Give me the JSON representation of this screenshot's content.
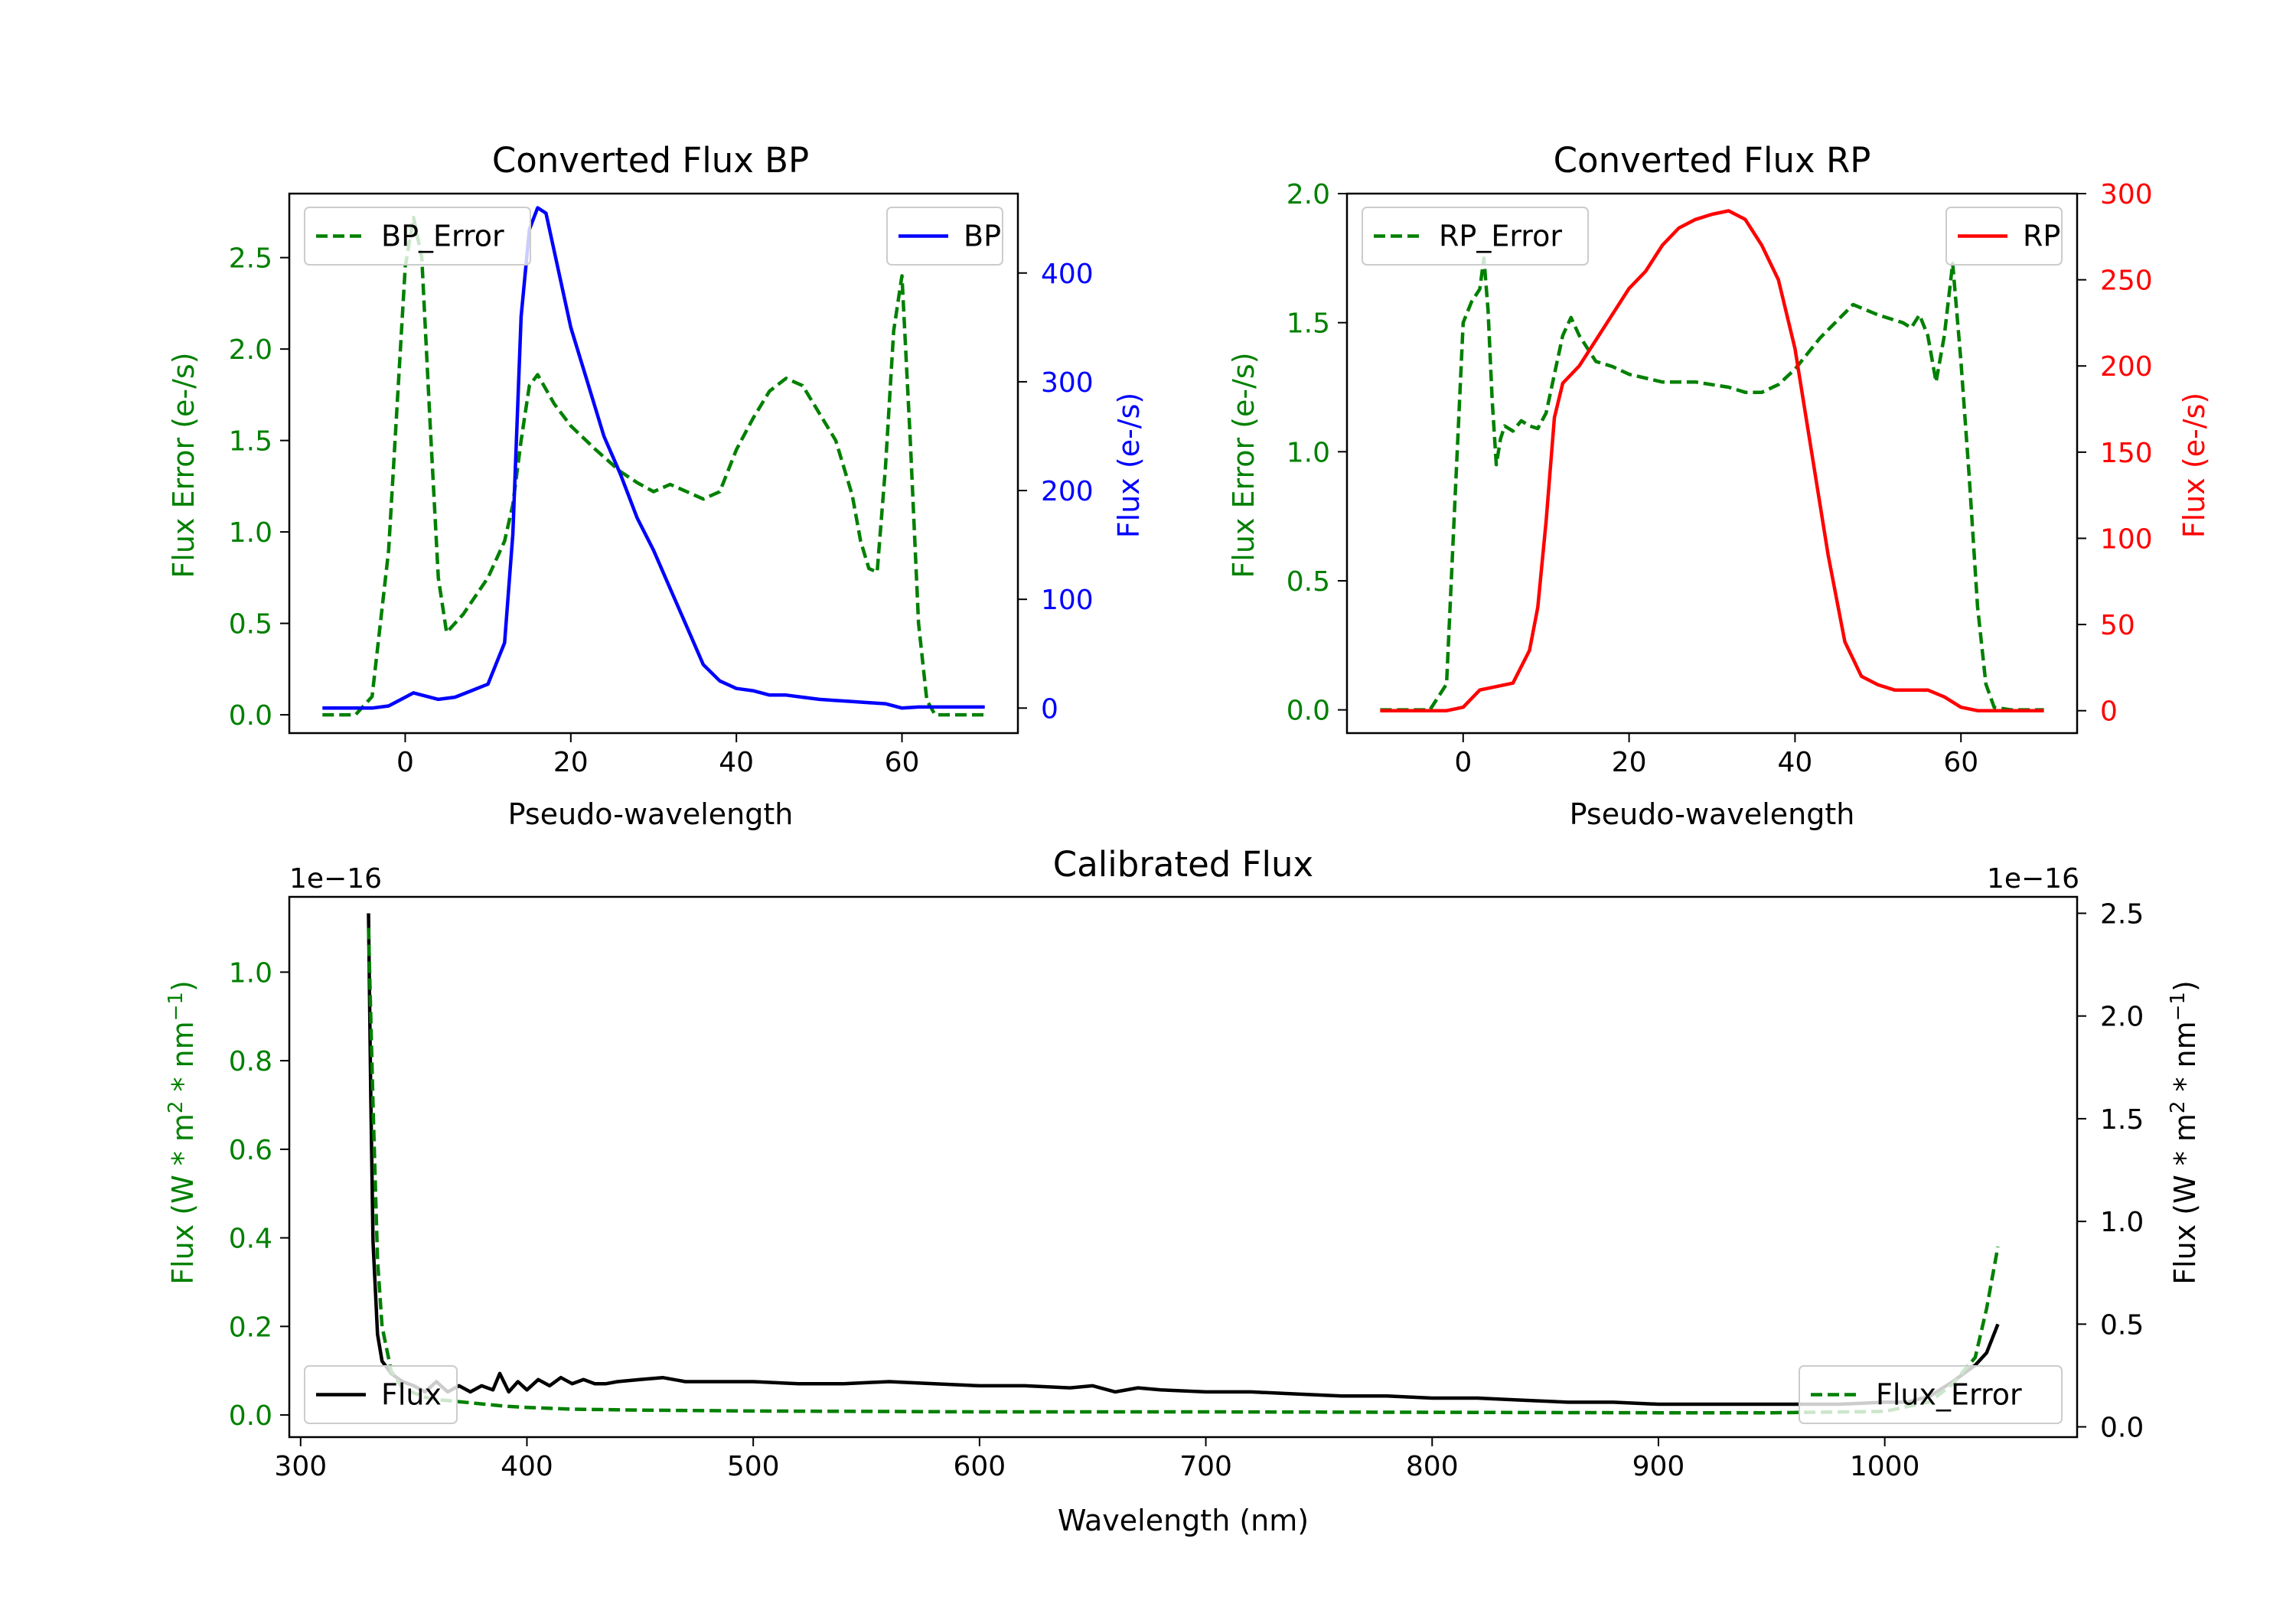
{
  "colors": {
    "green": "#008000",
    "blue": "#0000ff",
    "red": "#ff0000",
    "black": "#000000"
  },
  "chart_data": [
    {
      "id": "bp",
      "type": "line",
      "title": "Converted Flux BP",
      "xlabel": "Pseudo-wavelength",
      "ylabel_left": "Flux Error (e-/s)",
      "ylabel_right": "Flux (e-/s)",
      "xlim": [
        -14,
        74
      ],
      "xticks": [
        0,
        20,
        40,
        60
      ],
      "ylim_left": [
        -0.1,
        2.85
      ],
      "yticks_left": [
        0.0,
        0.5,
        1.0,
        1.5,
        2.0,
        2.5
      ],
      "yticklabels_left": [
        "0.0",
        "0.5",
        "1.0",
        "1.5",
        "2.0",
        "2.5"
      ],
      "ylim_right": [
        -23,
        473
      ],
      "yticks_right": [
        0,
        100,
        200,
        300,
        400
      ],
      "series": [
        {
          "name": "BP_Error",
          "axis": "left",
          "style": "dashed",
          "color": "#008000",
          "legend": "top-left",
          "x": [
            -10,
            -6,
            -4,
            -2,
            0,
            1,
            2,
            3,
            4,
            5,
            7,
            10,
            12,
            13,
            14,
            15,
            16,
            18,
            20,
            23,
            26,
            28,
            30,
            32,
            34,
            36,
            38,
            40,
            42,
            44,
            46,
            48,
            50,
            52,
            54,
            55,
            56,
            57,
            58,
            59,
            60,
            61,
            62,
            63,
            64,
            66,
            70
          ],
          "y": [
            0.0,
            0.0,
            0.1,
            0.9,
            2.45,
            2.72,
            2.5,
            1.6,
            0.75,
            0.45,
            0.55,
            0.75,
            0.95,
            1.15,
            1.5,
            1.8,
            1.86,
            1.7,
            1.58,
            1.45,
            1.33,
            1.27,
            1.22,
            1.26,
            1.22,
            1.18,
            1.22,
            1.45,
            1.62,
            1.77,
            1.84,
            1.8,
            1.65,
            1.5,
            1.2,
            0.95,
            0.8,
            0.78,
            1.35,
            2.1,
            2.4,
            1.5,
            0.5,
            0.08,
            0.0,
            0.0,
            0.0
          ]
        },
        {
          "name": "BP",
          "axis": "right",
          "style": "solid",
          "color": "#0000ff",
          "legend": "top-right",
          "x": [
            -10,
            -4,
            -2,
            0,
            1,
            2,
            4,
            6,
            8,
            10,
            12,
            13,
            14,
            15,
            16,
            17,
            18,
            20,
            22,
            24,
            26,
            28,
            30,
            32,
            34,
            36,
            38,
            40,
            42,
            44,
            46,
            48,
            50,
            52,
            54,
            56,
            58,
            60,
            62,
            66,
            70
          ],
          "y": [
            0,
            0,
            2,
            10,
            14,
            12,
            8,
            10,
            16,
            22,
            60,
            160,
            360,
            440,
            460,
            455,
            420,
            350,
            300,
            250,
            215,
            175,
            145,
            110,
            75,
            40,
            25,
            18,
            16,
            12,
            12,
            10,
            8,
            7,
            6,
            5,
            4,
            0,
            1,
            1,
            1
          ]
        }
      ]
    },
    {
      "id": "rp",
      "type": "line",
      "title": "Converted Flux RP",
      "xlabel": "Pseudo-wavelength",
      "ylabel_left": "Flux Error (e-/s)",
      "ylabel_right": "Flux (e-/s)",
      "xlim": [
        -14,
        74
      ],
      "xticks": [
        0,
        20,
        40,
        60
      ],
      "ylim_left": [
        -0.09,
        2.0
      ],
      "yticks_left": [
        0.0,
        0.5,
        1.0,
        1.5,
        2.0
      ],
      "yticklabels_left": [
        "0.0",
        "0.5",
        "1.0",
        "1.5",
        "2.0"
      ],
      "ylim_right": [
        -13,
        300
      ],
      "yticks_right": [
        0,
        50,
        100,
        150,
        200,
        250,
        300
      ],
      "series": [
        {
          "name": "RP_Error",
          "axis": "left",
          "style": "dashed",
          "color": "#008000",
          "legend": "top-left",
          "x": [
            -10,
            -4,
            -2,
            -1,
            0,
            1,
            2,
            2.5,
            3,
            3.5,
            4,
            4.5,
            5,
            6,
            7,
            8,
            9,
            10,
            11,
            12,
            13,
            14,
            16,
            18,
            20,
            24,
            28,
            32,
            34,
            36,
            38,
            40,
            43,
            47,
            50,
            53,
            54,
            55,
            56,
            57,
            58,
            59,
            60,
            61,
            62,
            63,
            64,
            66,
            70
          ],
          "y": [
            0.0,
            0.0,
            0.1,
            0.8,
            1.5,
            1.58,
            1.63,
            1.75,
            1.55,
            1.2,
            0.95,
            1.05,
            1.1,
            1.08,
            1.12,
            1.1,
            1.09,
            1.15,
            1.3,
            1.45,
            1.52,
            1.45,
            1.35,
            1.33,
            1.3,
            1.27,
            1.27,
            1.25,
            1.23,
            1.23,
            1.26,
            1.32,
            1.44,
            1.57,
            1.53,
            1.5,
            1.48,
            1.53,
            1.45,
            1.27,
            1.45,
            1.73,
            1.35,
            0.9,
            0.4,
            0.1,
            0.01,
            0.0,
            0.0
          ]
        },
        {
          "name": "RP",
          "axis": "right",
          "style": "solid",
          "color": "#ff0000",
          "legend": "top-right",
          "x": [
            -10,
            -2,
            0,
            2,
            4,
            6,
            8,
            9,
            10,
            11,
            12,
            13,
            14,
            16,
            18,
            20,
            22,
            24,
            26,
            28,
            30,
            32,
            34,
            36,
            38,
            40,
            42,
            44,
            46,
            48,
            50,
            52,
            54,
            56,
            58,
            60,
            62,
            66,
            70
          ],
          "y": [
            0,
            0,
            2,
            12,
            14,
            16,
            35,
            60,
            110,
            170,
            190,
            195,
            200,
            215,
            230,
            245,
            255,
            270,
            280,
            285,
            288,
            290,
            285,
            270,
            250,
            210,
            150,
            90,
            40,
            20,
            15,
            12,
            12,
            12,
            8,
            2,
            0,
            0,
            0
          ]
        }
      ]
    },
    {
      "id": "cal",
      "type": "line",
      "title": "Calibrated Flux",
      "xlabel": "Wavelength (nm)",
      "ylabel_left": "Flux (W * m",
      "ylabel_right": "Flux (W * m",
      "ylabel_units_mid": "2",
      "ylabel_units_a": " * nm",
      "ylabel_units_exp": "−1",
      "ylabel_units_end": ")",
      "offset_left": "1e−16",
      "offset_right": "1e−16",
      "xlim": [
        295,
        1085
      ],
      "xticks": [
        300,
        400,
        500,
        600,
        700,
        800,
        900,
        1000
      ],
      "ylim_left": [
        -0.05,
        1.17
      ],
      "yticks_left": [
        0.0,
        0.2,
        0.4,
        0.6,
        0.8,
        1.0
      ],
      "yticklabels_left": [
        "0.0",
        "0.2",
        "0.4",
        "0.6",
        "0.8",
        "1.0"
      ],
      "ylim_right": [
        -0.05,
        2.58
      ],
      "yticks_right": [
        0.0,
        0.5,
        1.0,
        1.5,
        2.0,
        2.5
      ],
      "yticklabels_right": [
        "0.0",
        "0.5",
        "1.0",
        "1.5",
        "2.0",
        "2.5"
      ],
      "series": [
        {
          "name": "Flux",
          "axis": "right",
          "style": "solid",
          "color": "#000000",
          "legend": "bottom-left",
          "x": [
            330,
            331,
            332,
            334,
            336,
            340,
            345,
            350,
            355,
            360,
            365,
            370,
            375,
            380,
            385,
            388,
            392,
            396,
            400,
            405,
            410,
            415,
            420,
            425,
            430,
            435,
            440,
            450,
            460,
            470,
            480,
            500,
            520,
            540,
            560,
            580,
            600,
            620,
            640,
            650,
            660,
            670,
            680,
            700,
            720,
            740,
            760,
            780,
            800,
            820,
            840,
            860,
            880,
            900,
            920,
            940,
            960,
            980,
            1000,
            1010,
            1020,
            1030,
            1040,
            1045,
            1050
          ],
          "y": [
            2.5,
            1.6,
            0.9,
            0.45,
            0.32,
            0.26,
            0.22,
            0.2,
            0.17,
            0.22,
            0.17,
            0.2,
            0.17,
            0.2,
            0.18,
            0.26,
            0.17,
            0.22,
            0.18,
            0.23,
            0.2,
            0.24,
            0.21,
            0.23,
            0.21,
            0.21,
            0.22,
            0.23,
            0.24,
            0.22,
            0.22,
            0.22,
            0.21,
            0.21,
            0.22,
            0.21,
            0.2,
            0.2,
            0.19,
            0.2,
            0.17,
            0.19,
            0.18,
            0.17,
            0.17,
            0.16,
            0.15,
            0.15,
            0.14,
            0.14,
            0.13,
            0.12,
            0.12,
            0.11,
            0.11,
            0.11,
            0.11,
            0.11,
            0.12,
            0.12,
            0.15,
            0.22,
            0.3,
            0.36,
            0.5
          ]
        },
        {
          "name": "Flux_Error",
          "axis": "left",
          "style": "dashed",
          "color": "#008000",
          "legend": "bottom-right",
          "x": [
            330,
            332,
            334,
            336,
            340,
            345,
            350,
            355,
            360,
            370,
            380,
            390,
            400,
            420,
            450,
            500,
            550,
            600,
            640,
            700,
            800,
            900,
            950,
            1000,
            1020,
            1030,
            1040,
            1045,
            1050
          ],
          "y": [
            1.1,
            0.7,
            0.35,
            0.2,
            0.1,
            0.06,
            0.05,
            0.04,
            0.035,
            0.03,
            0.025,
            0.02,
            0.017,
            0.013,
            0.011,
            0.009,
            0.008,
            0.007,
            0.007,
            0.007,
            0.006,
            0.005,
            0.005,
            0.008,
            0.03,
            0.07,
            0.13,
            0.24,
            0.38
          ]
        }
      ]
    }
  ]
}
